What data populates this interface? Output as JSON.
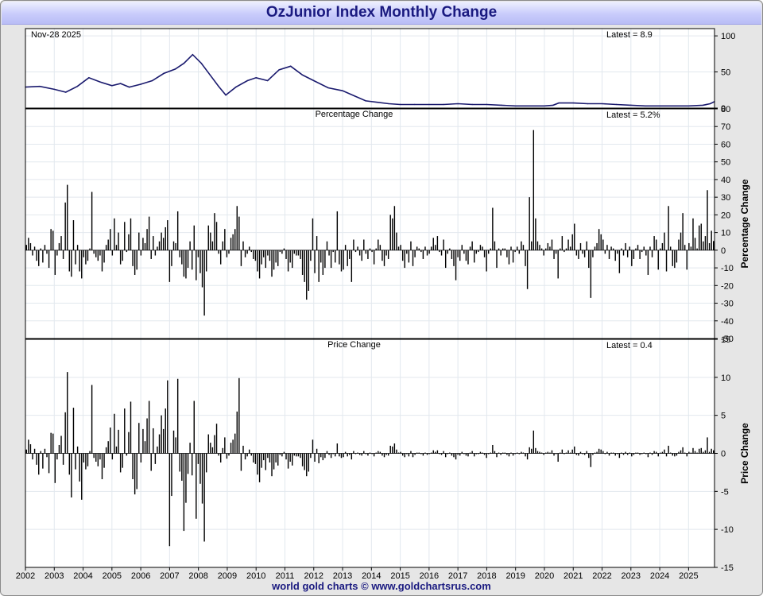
{
  "window": {
    "title": "OzJunior Index Monthly Change"
  },
  "footer": {
    "credit": "world gold charts © www.goldchartsrus.com"
  },
  "colors": {
    "line": "#1a1a6e",
    "bars": "#000000",
    "grid": "#e2e8ee",
    "title_bg": "#c9ccfb",
    "title_text": "#1a1a80"
  },
  "chart_data": [
    {
      "type": "line",
      "label_left": "Nov-28  2025",
      "label_right": "Latest = 8.9",
      "ylim": [
        0,
        110
      ],
      "yticks": [
        "0",
        "50",
        "100"
      ],
      "x": [
        2002.0,
        2002.5,
        2003.0,
        2003.4,
        2003.8,
        2004.2,
        2004.6,
        2005.0,
        2005.3,
        2005.6,
        2006.0,
        2006.4,
        2006.8,
        2007.2,
        2007.5,
        2007.8,
        2008.1,
        2008.4,
        2008.7,
        2008.95,
        2009.3,
        2009.7,
        2010.0,
        2010.4,
        2010.8,
        2011.2,
        2011.6,
        2012.0,
        2012.5,
        2013.0,
        2013.4,
        2013.8,
        2014.2,
        2014.6,
        2015.0,
        2015.5,
        2016.0,
        2016.5,
        2017.0,
        2017.5,
        2018.0,
        2018.5,
        2019.0,
        2019.5,
        2020.0,
        2020.3,
        2020.5,
        2021.0,
        2021.5,
        2022.0,
        2022.5,
        2023.0,
        2023.5,
        2024.0,
        2024.5,
        2025.0,
        2025.5,
        2025.75,
        2025.9
      ],
      "y": [
        29,
        30,
        26,
        22,
        30,
        42,
        36,
        31,
        34,
        29,
        33,
        38,
        48,
        54,
        62,
        74,
        62,
        46,
        30,
        18,
        29,
        38,
        42,
        38,
        53,
        58,
        46,
        38,
        28,
        24,
        17,
        10,
        8,
        6,
        5,
        5,
        5,
        5,
        6,
        5,
        5,
        4,
        3,
        3,
        3,
        4,
        7,
        7,
        6,
        6,
        5,
        4,
        3,
        3,
        3,
        3,
        4,
        6,
        8.9
      ]
    },
    {
      "type": "bar",
      "title": "Percentage Change",
      "label_right": "Latest = 5.2%",
      "ylabel": "Percentage Change",
      "ylim": [
        -50,
        80
      ],
      "yticks": [
        "-50",
        "-40",
        "-30",
        "-20",
        "-10",
        "0",
        "10",
        "20",
        "30",
        "40",
        "50",
        "60",
        "70",
        "80"
      ],
      "values": [
        3,
        7,
        4,
        -3,
        2,
        -6,
        -9,
        1,
        -7,
        3,
        -2,
        -10,
        12,
        11,
        -14,
        -3,
        4,
        8,
        -5,
        27,
        37,
        -12,
        -15,
        17,
        -8,
        3,
        -12,
        -16,
        -4,
        -8,
        -6,
        1,
        33,
        -2,
        -4,
        -6,
        -3,
        -12,
        -7,
        3,
        6,
        12,
        -3,
        18,
        3,
        10,
        -8,
        -6,
        16,
        -1,
        9,
        18,
        -9,
        -14,
        -11,
        10,
        -3,
        7,
        4,
        12,
        19,
        -5,
        8,
        -3,
        2,
        5,
        10,
        7,
        13,
        17,
        -18,
        -9,
        5,
        4,
        22,
        -4,
        -8,
        -15,
        -16,
        -10,
        5,
        -11,
        14,
        -17,
        -4,
        -13,
        -21,
        -37,
        -12,
        14,
        10,
        5,
        21,
        16,
        -2,
        -8,
        5,
        12,
        -4,
        -2,
        7,
        9,
        12,
        25,
        19,
        -9,
        5,
        -4,
        -2,
        2,
        -1,
        -5,
        -6,
        -12,
        -16,
        -8,
        -4,
        -10,
        -3,
        -6,
        -15,
        -11,
        -7,
        -9,
        -1,
        -2,
        1,
        -5,
        -12,
        -7,
        -10,
        -2,
        -3,
        -3,
        -5,
        -14,
        -18,
        -28,
        -23,
        -6,
        18,
        -13,
        8,
        -18,
        -7,
        -14,
        -10,
        5,
        -3,
        -10,
        -1,
        -7,
        22,
        -8,
        -12,
        -11,
        3,
        -9,
        -5,
        -18,
        6,
        -1,
        2,
        -3,
        -6,
        6,
        -2,
        -5,
        1,
        -1,
        -8,
        1,
        6,
        3,
        -6,
        -9,
        -3,
        -5,
        20,
        18,
        25,
        10,
        2,
        3,
        -6,
        -10,
        -2,
        -7,
        5,
        -9,
        -4,
        2,
        1,
        -1,
        -5,
        2,
        -3,
        -2,
        2,
        7,
        3,
        8,
        -1,
        -3,
        6,
        -10,
        -2,
        1,
        -5,
        -9,
        -17,
        -4,
        -6,
        3,
        -2,
        -6,
        -8,
        2,
        5,
        -7,
        -2,
        -1,
        3,
        2,
        -4,
        -12,
        -2,
        1,
        24,
        5,
        -10,
        1,
        -3,
        1,
        1,
        -4,
        -8,
        2,
        -7,
        -1,
        2,
        -2,
        5,
        3,
        -9,
        -22,
        30,
        5,
        68,
        18,
        5,
        3,
        1,
        -3,
        1,
        4,
        2,
        6,
        -5,
        -2,
        -16,
        1,
        8,
        -1,
        1,
        6,
        2,
        9,
        15,
        -3,
        -5,
        4,
        -2,
        -4,
        5,
        -10,
        -27,
        -4,
        2,
        4,
        12,
        9,
        6,
        -2,
        3,
        -5,
        2,
        1,
        -6,
        -2,
        -13,
        1,
        -3,
        4,
        -4,
        2,
        -9,
        -5,
        1,
        3,
        -5,
        -1,
        2,
        -3,
        -14,
        2,
        -4,
        8,
        6,
        -11,
        1,
        4,
        10,
        -12,
        25,
        2,
        -9,
        -10,
        -7,
        6,
        10,
        21,
        3,
        -11,
        4,
        2,
        18,
        7,
        1,
        14,
        15,
        5,
        8,
        34,
        4,
        11,
        5.2
      ]
    },
    {
      "type": "bar",
      "title": "Price Change",
      "label_right": "Latest = 0.4",
      "ylabel": "Price Change",
      "ylim": [
        -15,
        15
      ],
      "yticks": [
        "-15",
        "-10",
        "-5",
        "0",
        "5",
        "10",
        "15"
      ],
      "values": [
        0.5,
        1.8,
        1.2,
        -0.8,
        0.6,
        -1.5,
        -2.8,
        0.3,
        -2,
        0.6,
        -0.5,
        -2.6,
        2.7,
        2.6,
        -3.9,
        -0.8,
        1.1,
        2.3,
        -1.5,
        5.4,
        10.7,
        -2.8,
        -5.8,
        6,
        -2.1,
        0.9,
        -3.7,
        -6.1,
        -1.2,
        -2.1,
        -1.7,
        0.3,
        9,
        -0.6,
        -1.1,
        -1.7,
        -0.8,
        -3.4,
        -1.9,
        0.8,
        1.6,
        3.4,
        -0.8,
        5.2,
        0.9,
        3.1,
        -2.5,
        -1.9,
        5.9,
        -0.3,
        2.8,
        6.8,
        -3.4,
        -5.4,
        -4.7,
        4,
        -1.2,
        3.2,
        1.6,
        4.6,
        6.9,
        -2.3,
        3.3,
        -1.4,
        0.9,
        2.5,
        5,
        3.2,
        5.9,
        9.6,
        -12.2,
        -5.6,
        3,
        2.1,
        9.8,
        -2.4,
        -3.6,
        -10.2,
        -6.5,
        -2.7,
        1.4,
        -2.9,
        6.9,
        -8.6,
        -1.4,
        -4,
        -6.6,
        -11.6,
        -2.5,
        2.5,
        1.4,
        0.8,
        2.4,
        3.9,
        -0.3,
        -1.2,
        0.7,
        2.1,
        -0.7,
        -0.3,
        1.4,
        1.8,
        2.6,
        5.5,
        9.9,
        -2.3,
        1,
        -0.8,
        -0.4,
        0.5,
        -0.3,
        -1.2,
        -1.4,
        -2.8,
        -3.8,
        -1.9,
        -0.9,
        -2.2,
        -0.6,
        -1.2,
        -3,
        -2.1,
        -1.2,
        -1.6,
        -0.2,
        -0.4,
        0.2,
        -0.8,
        -2,
        -1.1,
        -1.6,
        -0.3,
        -0.4,
        -0.4,
        -0.6,
        -1.7,
        -2.2,
        -3,
        -2.4,
        -0.6,
        1.8,
        -1.1,
        0.6,
        -1.3,
        -0.5,
        -0.9,
        -0.6,
        0.3,
        -0.2,
        -0.6,
        -0.1,
        -0.4,
        1.3,
        -0.4,
        -0.6,
        -0.5,
        0.2,
        -0.4,
        -0.2,
        -0.8,
        0.3,
        -0.1,
        0.1,
        -0.2,
        -0.3,
        0.3,
        -0.1,
        -0.3,
        0.1,
        -0.1,
        -0.4,
        0.1,
        0.3,
        0.2,
        -0.3,
        -0.5,
        -0.2,
        -0.3,
        1,
        0.9,
        1.3,
        0.5,
        0.1,
        0.2,
        -0.3,
        -0.5,
        -0.1,
        -0.4,
        0.3,
        -0.5,
        -0.2,
        0.1,
        0.1,
        -0.1,
        -0.3,
        0.1,
        -0.2,
        -0.1,
        0.1,
        0.4,
        0.2,
        0.4,
        -0.1,
        -0.2,
        0.3,
        -0.5,
        -0.1,
        0.1,
        -0.3,
        -0.5,
        -0.8,
        -0.2,
        -0.3,
        0.2,
        -0.1,
        -0.3,
        -0.4,
        0.1,
        0.3,
        -0.4,
        -0.1,
        -0.1,
        0.2,
        0.1,
        -0.2,
        -0.6,
        -0.1,
        0.1,
        1.1,
        0.3,
        -0.5,
        0.1,
        -0.2,
        0.1,
        0.1,
        -0.2,
        -0.4,
        0.1,
        -0.3,
        -0.1,
        0.1,
        -0.1,
        0.2,
        0.1,
        -0.4,
        -0.8,
        0.8,
        0.6,
        3,
        0.7,
        0.3,
        0.2,
        0.1,
        -0.2,
        0.1,
        0.2,
        0.1,
        0.4,
        -0.3,
        -0.1,
        -1.1,
        0.1,
        0.5,
        -0.1,
        0.1,
        0.4,
        0.1,
        0.5,
        0.9,
        -0.2,
        -0.3,
        0.2,
        -0.1,
        -0.2,
        0.3,
        -0.6,
        -1.8,
        -0.2,
        0.1,
        0.2,
        0.6,
        0.5,
        0.3,
        -0.1,
        0.2,
        -0.3,
        0.1,
        0.1,
        -0.3,
        -0.1,
        -0.6,
        0.1,
        -0.2,
        0.2,
        -0.2,
        0.1,
        -0.4,
        -0.2,
        0.1,
        0.1,
        -0.2,
        -0.1,
        0.1,
        -0.1,
        -0.5,
        0.1,
        -0.2,
        0.3,
        0.2,
        -0.4,
        0.1,
        0.2,
        0.5,
        -0.4,
        1,
        0.1,
        -0.3,
        -0.4,
        -0.3,
        0.2,
        0.4,
        0.8,
        0.1,
        -0.4,
        0.2,
        0.1,
        0.7,
        0.3,
        0.1,
        0.6,
        0.7,
        0.2,
        0.4,
        2.1,
        0.2,
        0.6,
        0.4
      ]
    }
  ],
  "x_axis": {
    "xlim": [
      2002,
      2025.9
    ],
    "ticks": [
      "2002",
      "2003",
      "2004",
      "2005",
      "2006",
      "2007",
      "2008",
      "2009",
      "2010",
      "2011",
      "2012",
      "2013",
      "2014",
      "2015",
      "2016",
      "2017",
      "2018",
      "2019",
      "2020",
      "2021",
      "2022",
      "2023",
      "2024",
      "2025"
    ]
  }
}
